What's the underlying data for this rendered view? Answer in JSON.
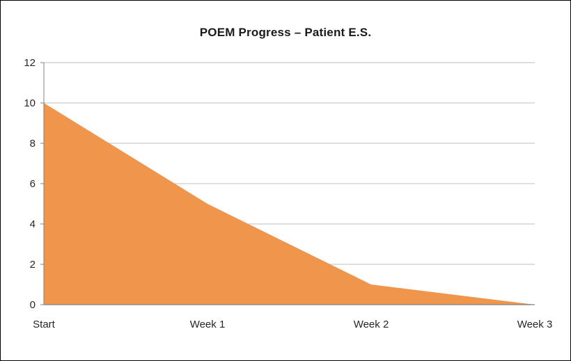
{
  "chart_data": {
    "type": "area",
    "title": "POEM Progress – Patient E.S.",
    "categories": [
      "Start",
      "Week 1",
      "Week 2",
      "Week 3"
    ],
    "values": [
      10,
      5,
      1,
      0
    ],
    "xlabel": "",
    "ylabel": "",
    "ylim": [
      0,
      12
    ],
    "yticks": [
      0,
      2,
      4,
      6,
      8,
      10,
      12
    ],
    "grid": true,
    "legend": false,
    "colors": {
      "area": "#F0954C",
      "gridline": "#BFBFBF",
      "axis": "#808080",
      "tick_text": "#262626",
      "title_text": "#1A1A1A",
      "background": "#FFFFFF",
      "frame_border": "#000000"
    }
  }
}
